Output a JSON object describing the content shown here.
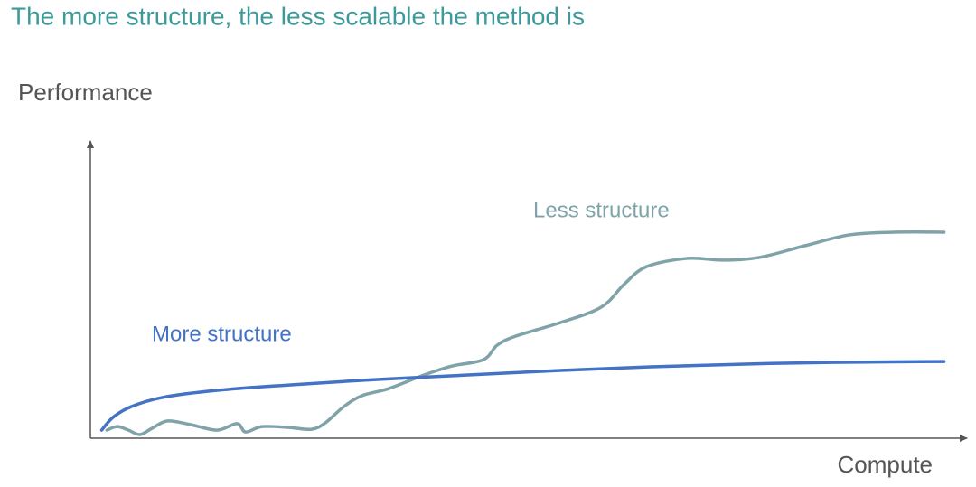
{
  "chart_data": {
    "type": "line",
    "title": "The more structure, the less scalable the method is",
    "y_label": "Performance",
    "x_label": "Compute",
    "xlim": [
      0,
      100
    ],
    "ylim": [
      0,
      100
    ],
    "series": [
      {
        "name": "Less structure",
        "color": "#7fa3a8",
        "x": [
          1.9,
          3.1,
          4.4,
          5.7,
          7.1,
          8.9,
          11.5,
          14.6,
          16.9,
          17.9,
          19.8,
          22.9,
          25.5,
          27.1,
          29.2,
          31.3,
          34.4,
          38.5,
          41.7,
          45.3,
          46.9,
          49.0,
          54.2,
          58.9,
          61.5,
          64.1,
          68.8,
          72.9,
          77.1,
          82.3,
          87.5,
          92.7,
          98.4
        ],
        "values": [
          2.4,
          3.6,
          2.4,
          0.9,
          3.0,
          5.5,
          4.3,
          2.4,
          4.6,
          1.8,
          3.6,
          3.3,
          2.7,
          4.9,
          10.3,
          14.0,
          16.4,
          21.0,
          24.0,
          26.1,
          31.0,
          34.0,
          38.6,
          43.8,
          51.4,
          57.4,
          60.2,
          59.6,
          60.5,
          64.4,
          68.1,
          69.0,
          69.0
        ]
      },
      {
        "name": "More structure",
        "color": "#4472c4",
        "x": [
          1.3,
          2.6,
          4.7,
          8.3,
          14.6,
          22.9,
          33.3,
          43.8,
          54.2,
          64.6,
          75.0,
          85.4,
          98.4
        ],
        "values": [
          2.4,
          6.7,
          10.3,
          13.4,
          15.8,
          17.6,
          19.5,
          21.0,
          22.5,
          23.7,
          24.6,
          25.2,
          25.5
        ]
      }
    ]
  }
}
